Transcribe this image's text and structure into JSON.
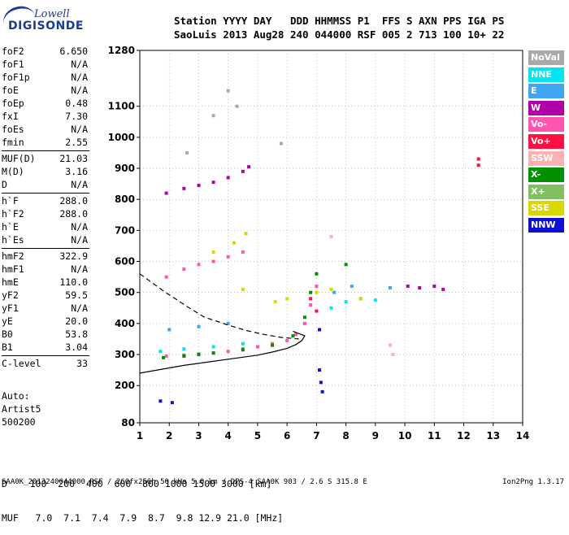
{
  "logo": {
    "line1": "Lowell",
    "line2": "DIGISONDE"
  },
  "header": {
    "line1": "Station YYYY DAY   DDD HHMMSS P1  FFS S AXN PPS IGA PS",
    "line2": "SaoLuis 2013 Aug28 240 044000 RSF 005 2 713 100 10+ 22"
  },
  "params": {
    "group1": [
      {
        "key": "foF2",
        "value": "6.650"
      },
      {
        "key": "foF1",
        "value": "N/A"
      },
      {
        "key": "foF1p",
        "value": "N/A"
      },
      {
        "key": "foE",
        "value": "N/A"
      },
      {
        "key": "foEp",
        "value": "0.48"
      },
      {
        "key": "fxI",
        "value": "7.30"
      },
      {
        "key": "foEs",
        "value": "N/A"
      },
      {
        "key": "fmin",
        "value": "2.55"
      }
    ],
    "group2": [
      {
        "key": "MUF(D)",
        "value": "21.03"
      },
      {
        "key": "M(D)",
        "value": "3.16"
      },
      {
        "key": "D",
        "value": "N/A"
      }
    ],
    "group3": [
      {
        "key": "h`F",
        "value": "288.0"
      },
      {
        "key": "h`F2",
        "value": "288.0"
      },
      {
        "key": "h`E",
        "value": "N/A"
      },
      {
        "key": "h`Es",
        "value": "N/A"
      }
    ],
    "group4": [
      {
        "key": "hmF2",
        "value": "322.9"
      },
      {
        "key": "hmF1",
        "value": "N/A"
      },
      {
        "key": "hmE",
        "value": "110.0"
      },
      {
        "key": "yF2",
        "value": "59.5"
      },
      {
        "key": "yF1",
        "value": "N/A"
      },
      {
        "key": "yE",
        "value": "20.0"
      },
      {
        "key": "B0",
        "value": "53.8"
      },
      {
        "key": "B1",
        "value": "3.04"
      }
    ],
    "group5": [
      {
        "key": "C-level",
        "value": "33"
      }
    ]
  },
  "auto": {
    "line1": "Auto:",
    "line2": "Artist5",
    "line3": "500200"
  },
  "muf_table": {
    "row1": "D    100  200  400  600  800 1000 1500 3000 [km]",
    "row2": "MUF   7.0  7.1  7.4  7.9  8.7  9.8 12.9 21.0 [MHz]"
  },
  "footer": "SAA0K_2013240044000.RSF / 260fx256h 50 kHs 5.0 km / DPS-4 SAA0K 903 / 2.6 S 315.8 E",
  "version": "Ion2Png 1.3.17",
  "legend": [
    {
      "label": "NoVal",
      "color": "#a9a9a9"
    },
    {
      "label": "NNE",
      "color": "#00e5f0"
    },
    {
      "label": "E",
      "color": "#3fa7f2"
    },
    {
      "label": "W",
      "color": "#b000a8"
    },
    {
      "label": "Vo-",
      "color": "#ff55b0"
    },
    {
      "label": "Vo+",
      "color": "#ff1040"
    },
    {
      "label": "SSW",
      "color": "#ffb0b0"
    },
    {
      "label": "X-",
      "color": "#009000"
    },
    {
      "label": "X+",
      "color": "#80c060"
    },
    {
      "label": "SSE",
      "color": "#d8d800"
    },
    {
      "label": "NNW",
      "color": "#1010d0"
    }
  ],
  "chart_data": {
    "type": "scatter",
    "xlabel": "",
    "ylabel": "",
    "xlim": [
      1,
      14
    ],
    "ylim": [
      80,
      1280
    ],
    "x_ticks": [
      "1",
      "2",
      "3",
      "4",
      "5",
      "6",
      "7",
      "8",
      "9",
      "10",
      "11",
      "12",
      "13",
      "14"
    ],
    "y_ticks": [
      "80",
      "200",
      "300",
      "400",
      "500",
      "600",
      "700",
      "800",
      "900",
      "1000",
      "1100",
      "1280"
    ],
    "grid": true,
    "series": [
      {
        "name": "W",
        "points": [
          [
            1.9,
            820
          ],
          [
            2.5,
            835
          ],
          [
            3.0,
            845
          ],
          [
            3.5,
            855
          ],
          [
            4.0,
            870
          ],
          [
            4.5,
            890
          ],
          [
            4.7,
            905
          ],
          [
            10.1,
            520
          ],
          [
            10.5,
            515
          ],
          [
            11.0,
            520
          ],
          [
            11.3,
            510
          ]
        ]
      },
      {
        "name": "Vo-",
        "points": [
          [
            1.9,
            550
          ],
          [
            2.5,
            575
          ],
          [
            3.0,
            590
          ],
          [
            3.5,
            600
          ],
          [
            4.0,
            615
          ],
          [
            4.5,
            630
          ],
          [
            1.9,
            295
          ],
          [
            2.5,
            298
          ],
          [
            3.0,
            302
          ],
          [
            3.5,
            305
          ],
          [
            4.0,
            310
          ],
          [
            4.5,
            318
          ],
          [
            5.0,
            325
          ],
          [
            5.5,
            335
          ],
          [
            6.0,
            345
          ],
          [
            6.3,
            365
          ],
          [
            6.6,
            400
          ],
          [
            6.8,
            460
          ],
          [
            7.0,
            520
          ]
        ]
      },
      {
        "name": "X-",
        "points": [
          [
            1.8,
            290
          ],
          [
            2.5,
            295
          ],
          [
            3.0,
            300
          ],
          [
            3.5,
            305
          ],
          [
            4.5,
            315
          ],
          [
            5.5,
            330
          ],
          [
            6.2,
            360
          ],
          [
            6.6,
            420
          ],
          [
            6.8,
            500
          ],
          [
            7.0,
            560
          ],
          [
            8.0,
            590
          ]
        ]
      },
      {
        "name": "NNE",
        "points": [
          [
            1.7,
            310
          ],
          [
            2.5,
            318
          ],
          [
            3.5,
            325
          ],
          [
            4.5,
            335
          ],
          [
            7.5,
            450
          ],
          [
            8.0,
            470
          ],
          [
            8.5,
            480
          ],
          [
            9.0,
            475
          ]
        ]
      },
      {
        "name": "E",
        "points": [
          [
            2.0,
            380
          ],
          [
            3.0,
            390
          ],
          [
            4.0,
            400
          ],
          [
            7.6,
            500
          ],
          [
            8.2,
            520
          ],
          [
            9.5,
            515
          ]
        ]
      },
      {
        "name": "SSE",
        "points": [
          [
            3.5,
            630
          ],
          [
            4.2,
            660
          ],
          [
            4.6,
            690
          ],
          [
            5.6,
            470
          ],
          [
            6.0,
            480
          ],
          [
            7.0,
            500
          ],
          [
            7.5,
            510
          ],
          [
            8.5,
            480
          ],
          [
            4.5,
            510
          ]
        ]
      },
      {
        "name": "NNW",
        "points": [
          [
            1.7,
            150
          ],
          [
            2.1,
            145
          ],
          [
            7.1,
            250
          ],
          [
            7.15,
            210
          ],
          [
            7.2,
            180
          ],
          [
            7.1,
            380
          ]
        ]
      },
      {
        "name": "Vo+",
        "points": [
          [
            12.5,
            930
          ],
          [
            12.5,
            910
          ],
          [
            7.0,
            440
          ],
          [
            6.8,
            480
          ]
        ]
      },
      {
        "name": "SSW",
        "points": [
          [
            9.5,
            330
          ],
          [
            9.6,
            300
          ],
          [
            7.5,
            680
          ]
        ]
      },
      {
        "name": "NoVal",
        "points": [
          [
            3.5,
            1070
          ],
          [
            4.3,
            1100
          ],
          [
            4.0,
            1150
          ],
          [
            5.8,
            980
          ],
          [
            2.6,
            950
          ]
        ]
      }
    ],
    "profile_curves": [
      {
        "name": "true-height profile",
        "style": "solid",
        "points": [
          [
            1,
            240
          ],
          [
            2.5,
            265
          ],
          [
            4.0,
            285
          ],
          [
            5.0,
            298
          ],
          [
            5.5,
            308
          ],
          [
            6.0,
            320
          ],
          [
            6.3,
            332
          ],
          [
            6.5,
            345
          ],
          [
            6.6,
            360
          ],
          [
            6.2,
            375
          ]
        ]
      },
      {
        "name": "lower profile",
        "style": "dashed",
        "points": [
          [
            1,
            560
          ],
          [
            1.8,
            505
          ],
          [
            2.6,
            455
          ],
          [
            3.2,
            420
          ],
          [
            4.0,
            395
          ],
          [
            4.6,
            378
          ],
          [
            5.2,
            365
          ],
          [
            5.8,
            355
          ],
          [
            6.4,
            350
          ]
        ]
      }
    ]
  }
}
